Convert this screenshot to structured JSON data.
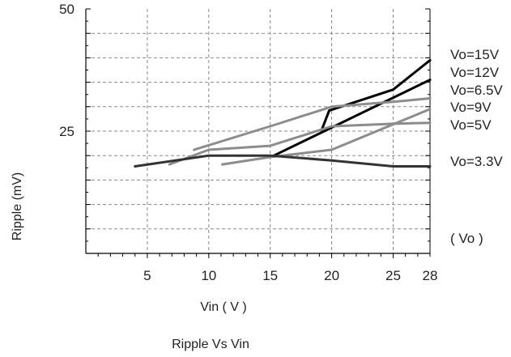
{
  "chart_data": {
    "type": "line",
    "title": "Ripple  Vs  Vin",
    "xlabel": "Vin ( V )",
    "ylabel": "Ripple (mV)",
    "legend_title": "( Vo )",
    "x_ticks": [
      5,
      10,
      15,
      20,
      25,
      28
    ],
    "y_ticks": [
      25,
      50
    ],
    "xlim": [
      0,
      28
    ],
    "ylim": [
      0,
      50
    ],
    "grid": true,
    "series_label_placement": "right of plot",
    "series": [
      {
        "name": "Vo=15V",
        "color": "#000000",
        "points": [
          [
            19.2,
            25.3
          ],
          [
            19.8,
            29.2
          ],
          [
            25,
            33.5
          ],
          [
            28,
            39.5
          ]
        ]
      },
      {
        "name": "Vo=12V",
        "color": "#000000",
        "points": [
          [
            15.3,
            20
          ],
          [
            28,
            35.5
          ]
        ]
      },
      {
        "name": "Vo=6.5V",
        "color": "#8c8c8c",
        "points": [
          [
            8.8,
            21.2
          ],
          [
            15,
            26
          ],
          [
            20,
            30
          ],
          [
            25,
            31
          ],
          [
            28,
            31.7
          ]
        ]
      },
      {
        "name": "Vo=9V",
        "color": "#8c8c8c",
        "points": [
          [
            11.1,
            18.2
          ],
          [
            15,
            19.7
          ],
          [
            20,
            21.2
          ],
          [
            28,
            29.5
          ]
        ]
      },
      {
        "name": "Vo=5V",
        "color": "#8c8c8c",
        "points": [
          [
            6.8,
            18.2
          ],
          [
            10,
            21.2
          ],
          [
            15,
            22
          ],
          [
            20,
            26
          ],
          [
            25,
            26.5
          ],
          [
            28,
            26.7
          ]
        ]
      },
      {
        "name": "Vo=3.3V",
        "color": "#333333",
        "points": [
          [
            4,
            17.8
          ],
          [
            10,
            20
          ],
          [
            15,
            20
          ],
          [
            20,
            19
          ],
          [
            25,
            17.8
          ],
          [
            28,
            17.8
          ]
        ]
      }
    ]
  }
}
